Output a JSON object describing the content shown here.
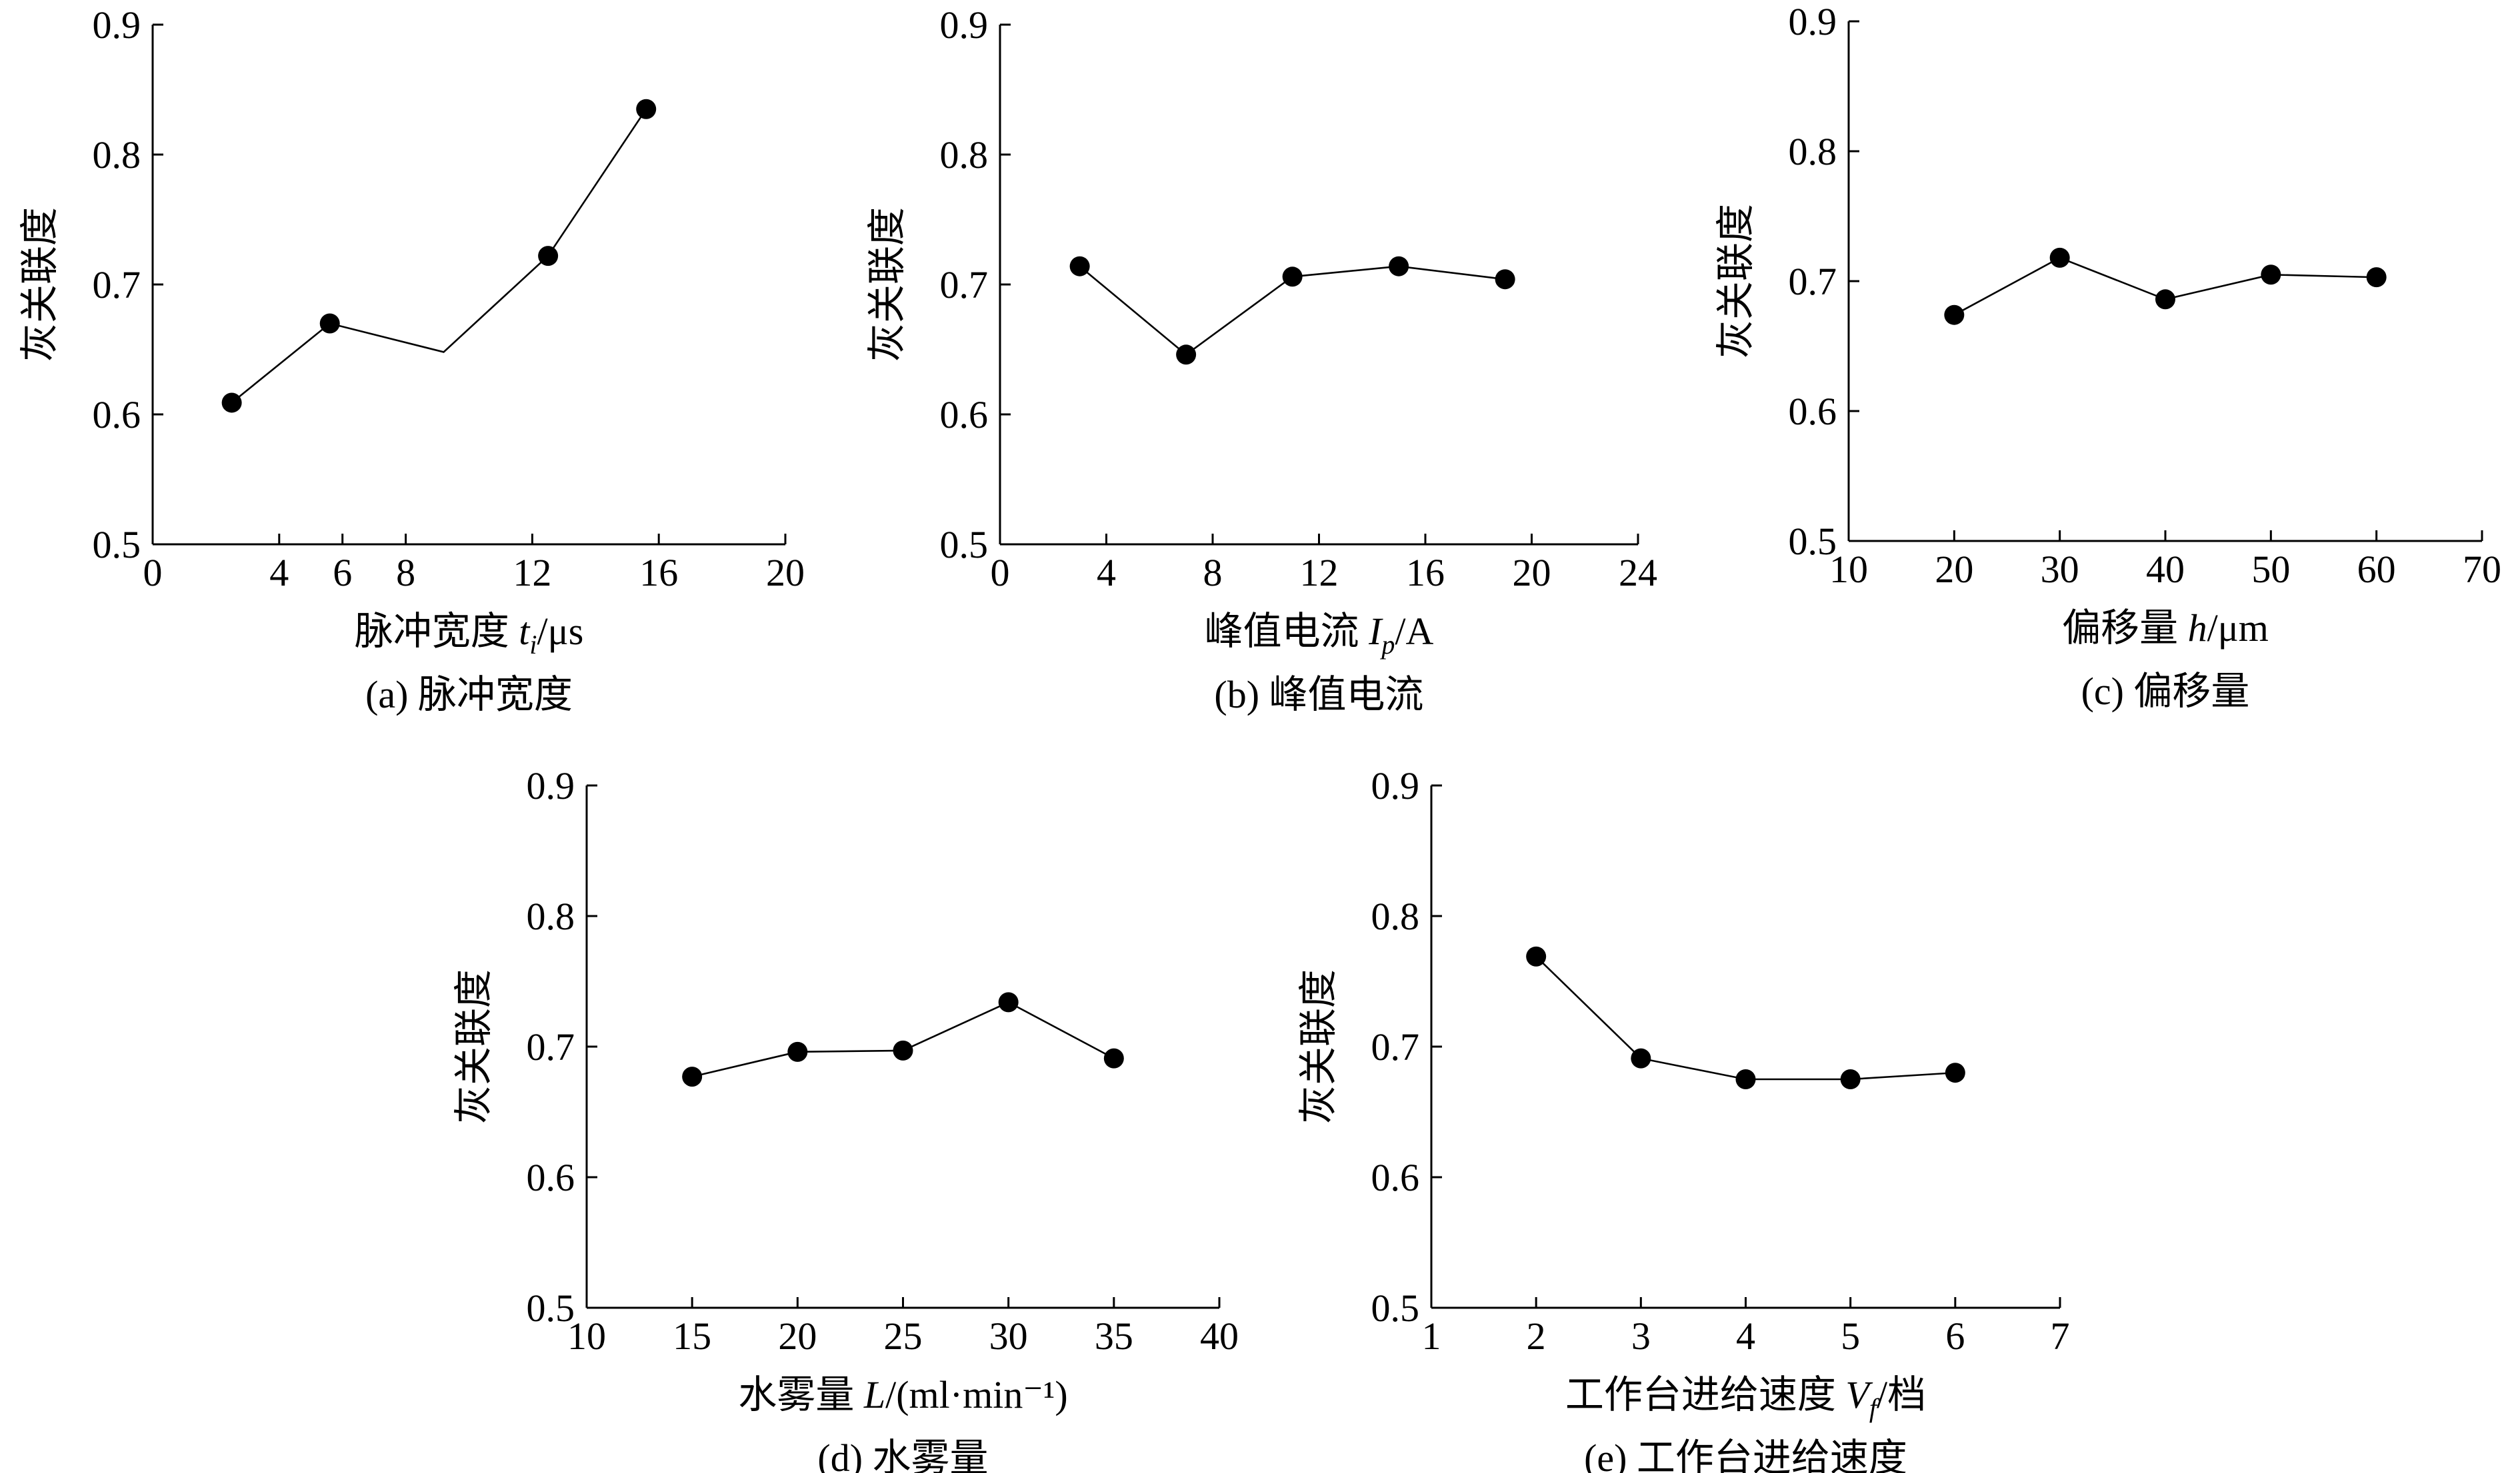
{
  "figure": {
    "y_label": "灰关联度"
  },
  "chart_data": [
    {
      "type": "line",
      "id": "a",
      "caption": "(a) 脉冲宽度",
      "xlabel_main": "脉冲宽度 ",
      "xlabel_var": "t",
      "xlabel_sub": "i",
      "xlabel_unit": "/μs",
      "ylabel": "灰关联度",
      "xlim": [
        0,
        20
      ],
      "ylim": [
        0.5,
        0.9
      ],
      "xticks": [
        0,
        4,
        6,
        8,
        12,
        16,
        20
      ],
      "yticks": [
        0.5,
        0.6,
        0.7,
        0.8,
        0.9
      ],
      "line_x": [
        2.5,
        5.6,
        9.2,
        12.5,
        15.6
      ],
      "line_y": [
        0.609,
        0.67,
        0.648,
        0.722,
        0.835
      ],
      "marker_x": [
        2.5,
        5.6,
        12.5,
        15.6
      ],
      "marker_y": [
        0.609,
        0.67,
        0.722,
        0.835
      ]
    },
    {
      "type": "line",
      "id": "b",
      "caption": "(b) 峰值电流",
      "xlabel_main": "峰值电流 ",
      "xlabel_var": "I",
      "xlabel_sub": "p",
      "xlabel_unit": "/A",
      "ylabel": "灰关联度",
      "xlim": [
        0,
        24
      ],
      "ylim": [
        0.5,
        0.9
      ],
      "xticks": [
        0,
        4,
        8,
        12,
        16,
        20,
        24
      ],
      "yticks": [
        0.5,
        0.6,
        0.7,
        0.8,
        0.9
      ],
      "line_x": [
        3,
        7,
        11,
        15,
        19
      ],
      "line_y": [
        0.714,
        0.646,
        0.706,
        0.714,
        0.704
      ],
      "marker_x": [
        3,
        7,
        11,
        15,
        19
      ],
      "marker_y": [
        0.714,
        0.646,
        0.706,
        0.714,
        0.704
      ]
    },
    {
      "type": "line",
      "id": "c",
      "caption": "(c) 偏移量",
      "xlabel_main": "偏移量 ",
      "xlabel_var": "h",
      "xlabel_sub": "",
      "xlabel_unit": "/μm",
      "ylabel": "灰关联度",
      "xlim": [
        10,
        70
      ],
      "ylim": [
        0.5,
        0.9
      ],
      "xticks": [
        10,
        20,
        30,
        40,
        50,
        60,
        70
      ],
      "yticks": [
        0.5,
        0.6,
        0.7,
        0.8,
        0.9
      ],
      "line_x": [
        20,
        30,
        40,
        50,
        60
      ],
      "line_y": [
        0.674,
        0.718,
        0.686,
        0.705,
        0.703
      ],
      "marker_x": [
        20,
        30,
        40,
        50,
        60
      ],
      "marker_y": [
        0.674,
        0.718,
        0.686,
        0.705,
        0.703
      ]
    },
    {
      "type": "line",
      "id": "d",
      "caption": "(d) 水雾量",
      "xlabel_main": "水雾量 ",
      "xlabel_var": "L",
      "xlabel_sub": "",
      "xlabel_unit": "/(ml·min⁻¹)",
      "ylabel": "灰关联度",
      "xlim": [
        10,
        40
      ],
      "ylim": [
        0.5,
        0.9
      ],
      "xticks": [
        10,
        15,
        20,
        25,
        30,
        35,
        40
      ],
      "yticks": [
        0.5,
        0.6,
        0.7,
        0.8,
        0.9
      ],
      "line_x": [
        15,
        20,
        25,
        30,
        35
      ],
      "line_y": [
        0.677,
        0.696,
        0.697,
        0.734,
        0.691
      ],
      "marker_x": [
        15,
        20,
        25,
        30,
        35
      ],
      "marker_y": [
        0.677,
        0.696,
        0.697,
        0.734,
        0.691
      ]
    },
    {
      "type": "line",
      "id": "e",
      "caption": "(e) 工作台进给速度",
      "xlabel_main": "工作台进给速度 ",
      "xlabel_var": "V",
      "xlabel_sub": "f",
      "xlabel_unit": "/档",
      "ylabel": "灰关联度",
      "xlim": [
        1,
        7
      ],
      "ylim": [
        0.5,
        0.9
      ],
      "xticks": [
        1,
        2,
        3,
        4,
        5,
        6,
        7
      ],
      "yticks": [
        0.5,
        0.6,
        0.7,
        0.8,
        0.9
      ],
      "line_x": [
        2,
        3,
        4,
        5,
        6
      ],
      "line_y": [
        0.769,
        0.691,
        0.675,
        0.675,
        0.68
      ],
      "marker_x": [
        2,
        3,
        4,
        5,
        6
      ],
      "marker_y": [
        0.769,
        0.691,
        0.675,
        0.675,
        0.68
      ]
    }
  ]
}
